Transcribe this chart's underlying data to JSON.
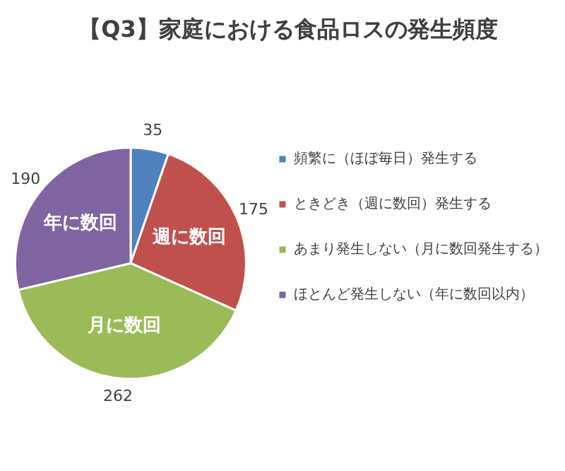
{
  "chart_data": {
    "type": "pie",
    "title": "【Q3】家庭における食品ロスの発生頻度",
    "categories": [
      "頻繁に（ほぼ毎日）発生する",
      "ときどき（週に数回）発生する",
      "あまり発生しない（月に数回発生する）",
      "ほとんど発生しない（年に数回以内）"
    ],
    "values": [
      35,
      175,
      262,
      190
    ],
    "colors": [
      "#4f81bd",
      "#c0504d",
      "#9bbb59",
      "#8064a2"
    ],
    "data_labels": true,
    "legend": "right",
    "annotations": [
      {
        "text": "週に数回",
        "x": "ときどき（週に数回）発生する"
      },
      {
        "text": "月に数回",
        "x": "あまり発生しない（月に数回発生する）"
      },
      {
        "text": "年に数回",
        "x": "ほとんど発生しない（年に数回以内）"
      }
    ]
  }
}
